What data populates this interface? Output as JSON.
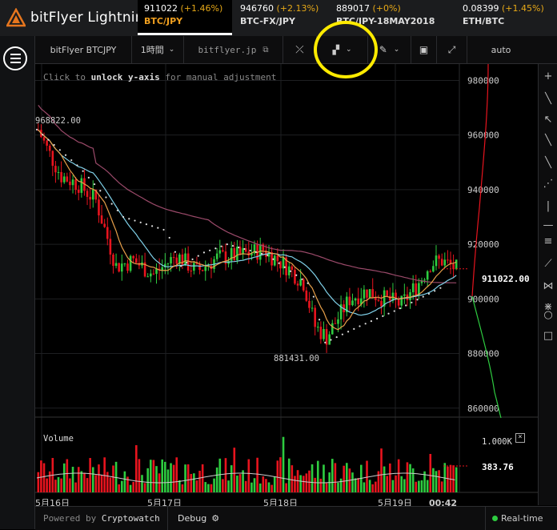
{
  "app": {
    "logo_text": "bitFlyer Lightning"
  },
  "tickers": [
    {
      "price": "911022",
      "change": "(+1.46%)",
      "symbol": "BTC/JPY",
      "active": true
    },
    {
      "price": "946760",
      "change": "(+2.13%)",
      "symbol": "BTC-FX/JPY",
      "active": false
    },
    {
      "price": "889017",
      "change": "(+0%)",
      "symbol": "BTC/JPY-18MAY2018",
      "active": false
    },
    {
      "price": "0.08399",
      "change": "(+1.45%)",
      "symbol": "ETH/BTC",
      "active": false
    }
  ],
  "toolbar": {
    "market": "bitFlyer BTCJPY",
    "interval": "1時間",
    "source": "bitflyer.jp",
    "scale": "auto"
  },
  "chart": {
    "hint_prefix": "Click to",
    "hint_bold": "unlock y-axis",
    "hint_suffix": "for manual adjustment",
    "high_label": "968822.00",
    "low_label": "881431.00",
    "last_price": "911022.00",
    "volume_title": "Volume",
    "volume_max": "1.000K",
    "volume_last": "383.76",
    "close_glyph": "×"
  },
  "chart_data": {
    "type": "candlestick",
    "y_ticks": [
      "980000",
      "960000",
      "940000",
      "920000",
      "900000",
      "880000",
      "860000"
    ],
    "y_tick_values": [
      980000,
      960000,
      940000,
      920000,
      900000,
      880000,
      860000
    ],
    "ylim": [
      857000,
      986000
    ],
    "x_ticks": [
      "5月16日",
      "5月17日",
      "5月18日",
      "5月19日",
      "00:42"
    ],
    "volume_ylim": [
      0,
      1100
    ]
  },
  "footer": {
    "powered_prefix": "Powered by",
    "powered_name": "Cryptowatch",
    "debug": "Debug",
    "status": "Real-time"
  },
  "colors": {
    "up": "#2ecc40",
    "down": "#e8141e",
    "accent": "#f0a020"
  }
}
